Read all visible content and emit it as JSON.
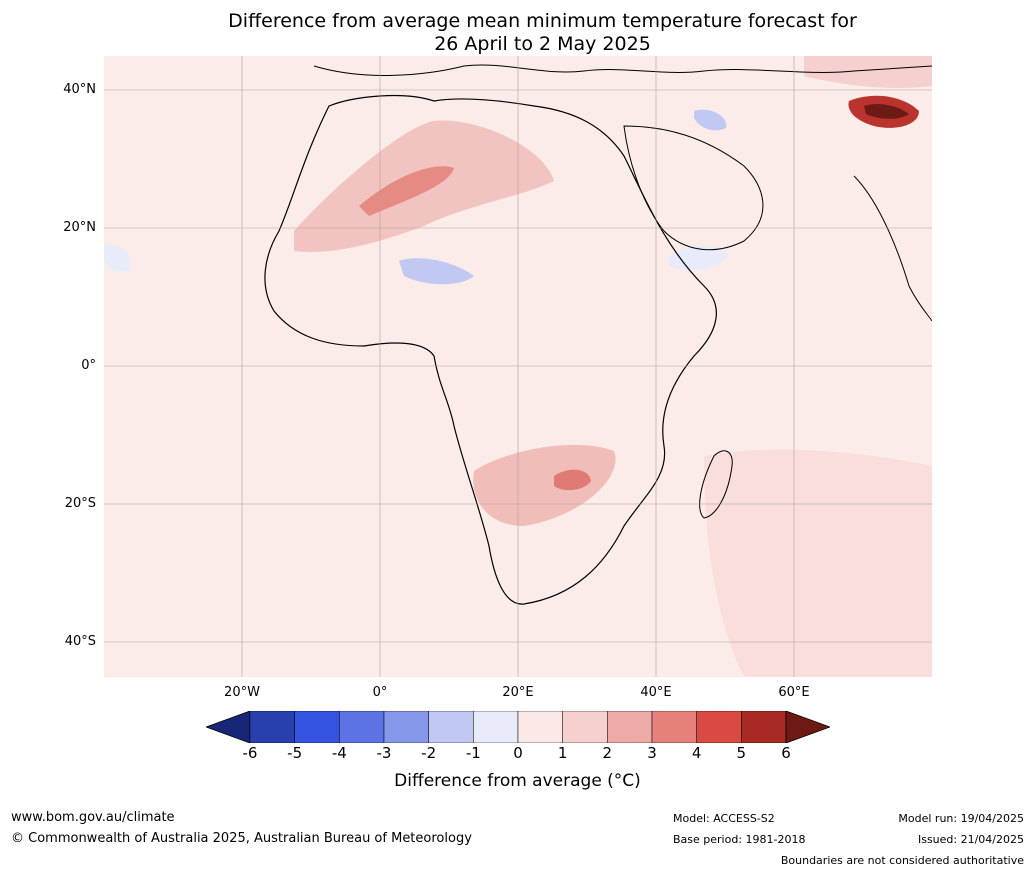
{
  "title": {
    "line1": "Difference from average mean minimum temperature forecast for",
    "line2": "26 April to 2 May 2025"
  },
  "map": {
    "region": "Africa",
    "lat_labels": [
      "40°N",
      "20°N",
      "0°",
      "20°S",
      "40°S"
    ],
    "lon_labels": [
      "20°W",
      "0°",
      "20°E",
      "40°E",
      "60°E"
    ]
  },
  "colorbar": {
    "ticks": [
      "-6",
      "-5",
      "-4",
      "-3",
      "-2",
      "-1",
      "0",
      "1",
      "2",
      "3",
      "4",
      "5",
      "6"
    ],
    "colors": [
      "#18267a",
      "#2a3fae",
      "#3353e0",
      "#5e73e3",
      "#8597e9",
      "#c1c8f2",
      "#e8ebfa",
      "#fbe9e8",
      "#f5d0ce",
      "#edaaa6",
      "#e6807a",
      "#d84a42",
      "#a92a24",
      "#6e1a14"
    ],
    "label": "Difference from average (°C)"
  },
  "footer": {
    "website": "www.bom.gov.au/climate",
    "copyright": "© Commonwealth of Australia 2025, Australian Bureau of Meteorology",
    "model": "Model: ACCESS-S2",
    "base_period": "Base period: 1981-2018",
    "model_run": "Model run: 19/04/2025",
    "issued": "Issued: 21/04/2025",
    "disclaimer": "Boundaries are not considered authoritative"
  }
}
